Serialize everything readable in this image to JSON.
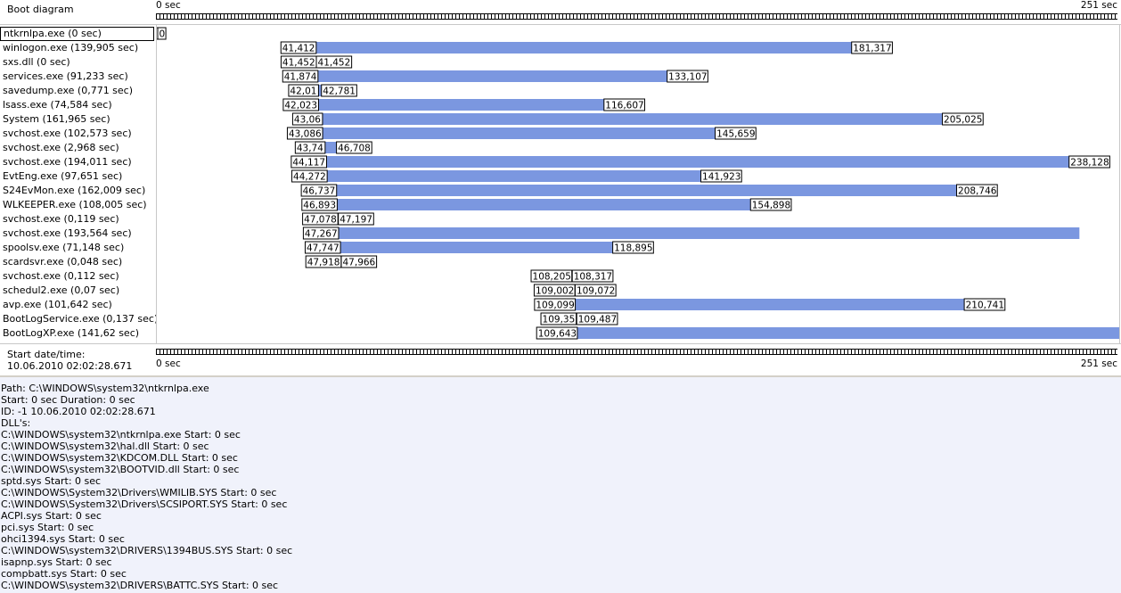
{
  "header": {
    "title": "Boot diagram",
    "ruler_start": "0 sec",
    "ruler_end": "251 sec"
  },
  "axis_max": 251,
  "colors": {
    "bar": "#7b97e0",
    "bar_edge": "#6f88d6",
    "grid": "#c8c8c8"
  },
  "processes": [
    {
      "name": "ntkrnlpa.exe (0 sec)",
      "start": 0,
      "end": 0,
      "start_label": "0",
      "end_label": "0",
      "selected": true
    },
    {
      "name": "winlogon.exe (139,905 sec)",
      "start": 41.412,
      "end": 181.317,
      "start_label": "41,412",
      "end_label": "181,317"
    },
    {
      "name": "sxs.dll (0 sec)",
      "start": 41.452,
      "end": 41.452,
      "start_label": "41,452",
      "end_label": "41,452"
    },
    {
      "name": "services.exe (91,233 sec)",
      "start": 41.874,
      "end": 133.107,
      "start_label": "41,874",
      "end_label": "133,107"
    },
    {
      "name": "savedump.exe (0,771 sec)",
      "start": 42.01,
      "end": 42.781,
      "start_label": "42,01",
      "end_label": "42,781"
    },
    {
      "name": "lsass.exe (74,584 sec)",
      "start": 42.023,
      "end": 116.607,
      "start_label": "42,023",
      "end_label": "116,607"
    },
    {
      "name": "System (161,965 sec)",
      "start": 43.06,
      "end": 205.025,
      "start_label": "43,06",
      "end_label": "205,025"
    },
    {
      "name": "svchost.exe (102,573 sec)",
      "start": 43.086,
      "end": 145.659,
      "start_label": "43,086",
      "end_label": "145,659"
    },
    {
      "name": "svchost.exe (2,968 sec)",
      "start": 43.74,
      "end": 46.708,
      "start_label": "43,74",
      "end_label": "46,708"
    },
    {
      "name": "svchost.exe (194,011 sec)",
      "start": 44.117,
      "end": 238.128,
      "start_label": "44,117",
      "end_label": "238,128"
    },
    {
      "name": "EvtEng.exe (97,651 sec)",
      "start": 44.272,
      "end": 141.923,
      "start_label": "44,272",
      "end_label": "141,923"
    },
    {
      "name": "S24EvMon.exe (162,009 sec)",
      "start": 46.737,
      "end": 208.746,
      "start_label": "46,737",
      "end_label": "208,746"
    },
    {
      "name": "WLKEEPER.exe (108,005 sec)",
      "start": 46.893,
      "end": 154.898,
      "start_label": "46,893",
      "end_label": "154,898"
    },
    {
      "name": "svchost.exe (0,119 sec)",
      "start": 47.078,
      "end": 47.197,
      "start_label": "47,078",
      "end_label": "47,197"
    },
    {
      "name": "svchost.exe (193,564 sec)",
      "start": 47.267,
      "end": 240.831,
      "start_label": "47,267",
      "end_label": ""
    },
    {
      "name": "spoolsv.exe (71,148 sec)",
      "start": 47.747,
      "end": 118.895,
      "start_label": "47,747",
      "end_label": "118,895"
    },
    {
      "name": "scardsvr.exe (0,048 sec)",
      "start": 47.918,
      "end": 47.966,
      "start_label": "47,918",
      "end_label": "47,966"
    },
    {
      "name": "svchost.exe (0,112 sec)",
      "start": 108.205,
      "end": 108.317,
      "start_label": "108,205",
      "end_label": "108,317"
    },
    {
      "name": "schedul2.exe (0,07 sec)",
      "start": 109.002,
      "end": 109.072,
      "start_label": "109,002",
      "end_label": "109,072"
    },
    {
      "name": "avp.exe (101,642 sec)",
      "start": 109.099,
      "end": 210.741,
      "start_label": "109,099",
      "end_label": "210,741"
    },
    {
      "name": "BootLogService.exe (0,137 sec)",
      "start": 109.35,
      "end": 109.487,
      "start_label": "109,35",
      "end_label": "109,487"
    },
    {
      "name": "BootLogXP.exe (141,62 sec)",
      "start": 109.643,
      "end": 251.263,
      "start_label": "109,643",
      "end_label": ""
    }
  ],
  "footer": {
    "start_label": "Start date/time:",
    "start_value": "10.06.2010 02:02:28.671",
    "ruler_start": "0 sec",
    "ruler_end": "251 sec"
  },
  "details": [
    "Path: C:\\WINDOWS\\system32\\ntkrnlpa.exe",
    "Start: 0 sec Duration: 0 sec",
    "ID: -1  10.06.2010  02:02:28.671",
    "DLL's:",
    "C:\\WINDOWS\\system32\\ntkrnlpa.exe Start: 0 sec",
    "C:\\WINDOWS\\system32\\hal.dll Start: 0 sec",
    "C:\\WINDOWS\\system32\\KDCOM.DLL Start: 0 sec",
    "C:\\WINDOWS\\system32\\BOOTVID.dll Start: 0 sec",
    "sptd.sys Start: 0 sec",
    "C:\\WINDOWS\\System32\\Drivers\\WMILIB.SYS Start: 0 sec",
    "C:\\WINDOWS\\System32\\Drivers\\SCSIPORT.SYS Start: 0 sec",
    "ACPI.sys Start: 0 sec",
    "pci.sys Start: 0 sec",
    "ohci1394.sys Start: 0 sec",
    "C:\\WINDOWS\\system32\\DRIVERS\\1394BUS.SYS Start: 0 sec",
    "isapnp.sys Start: 0 sec",
    "compbatt.sys Start: 0 sec",
    "C:\\WINDOWS\\system32\\DRIVERS\\BATTC.SYS Start: 0 sec"
  ]
}
